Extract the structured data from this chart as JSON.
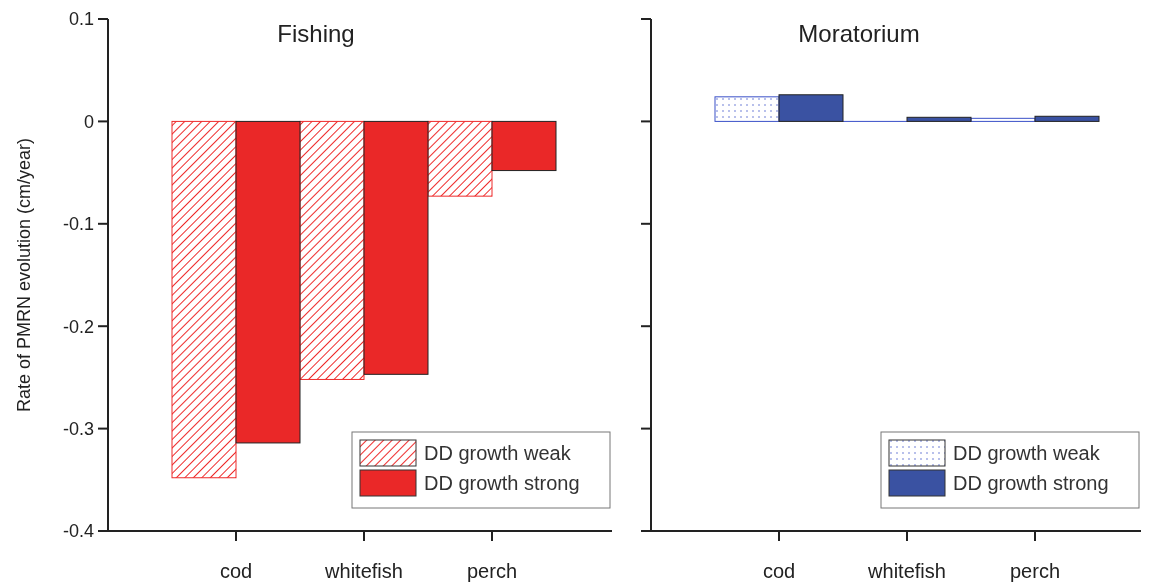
{
  "chart_data": [
    {
      "type": "bar",
      "title": "Fishing",
      "ylabel": "Rate of PMRN evolution (cm/year)",
      "categories": [
        "cod",
        "whitefish",
        "perch"
      ],
      "series": [
        {
          "name": "DD growth weak",
          "color": "#ee2a2a",
          "values": [
            -0.348,
            -0.252,
            -0.073
          ]
        },
        {
          "name": "DD growth strong",
          "color": "#ea2828",
          "values": [
            -0.314,
            -0.247,
            -0.048
          ]
        }
      ],
      "ylim": [
        -0.4,
        0.1
      ],
      "yticks": [
        -0.4,
        -0.3,
        -0.2,
        -0.1,
        0,
        0.1
      ],
      "legend": "bottom right"
    },
    {
      "type": "bar",
      "title": "Moratorium",
      "categories": [
        "cod",
        "whitefish",
        "perch"
      ],
      "series": [
        {
          "name": "DD growth weak",
          "color": "#3a50c8",
          "values": [
            0.024,
            0,
            0.003
          ]
        },
        {
          "name": "DD growth strong",
          "color": "#3a52a2",
          "values": [
            0.026,
            0.004,
            0.005
          ]
        }
      ],
      "ylim": [
        -0.4,
        0.1
      ],
      "yticks": [
        -0.4,
        -0.3,
        -0.2,
        -0.1,
        0,
        0.1
      ],
      "tick_labels": "x",
      "legend": "bottom right"
    }
  ]
}
